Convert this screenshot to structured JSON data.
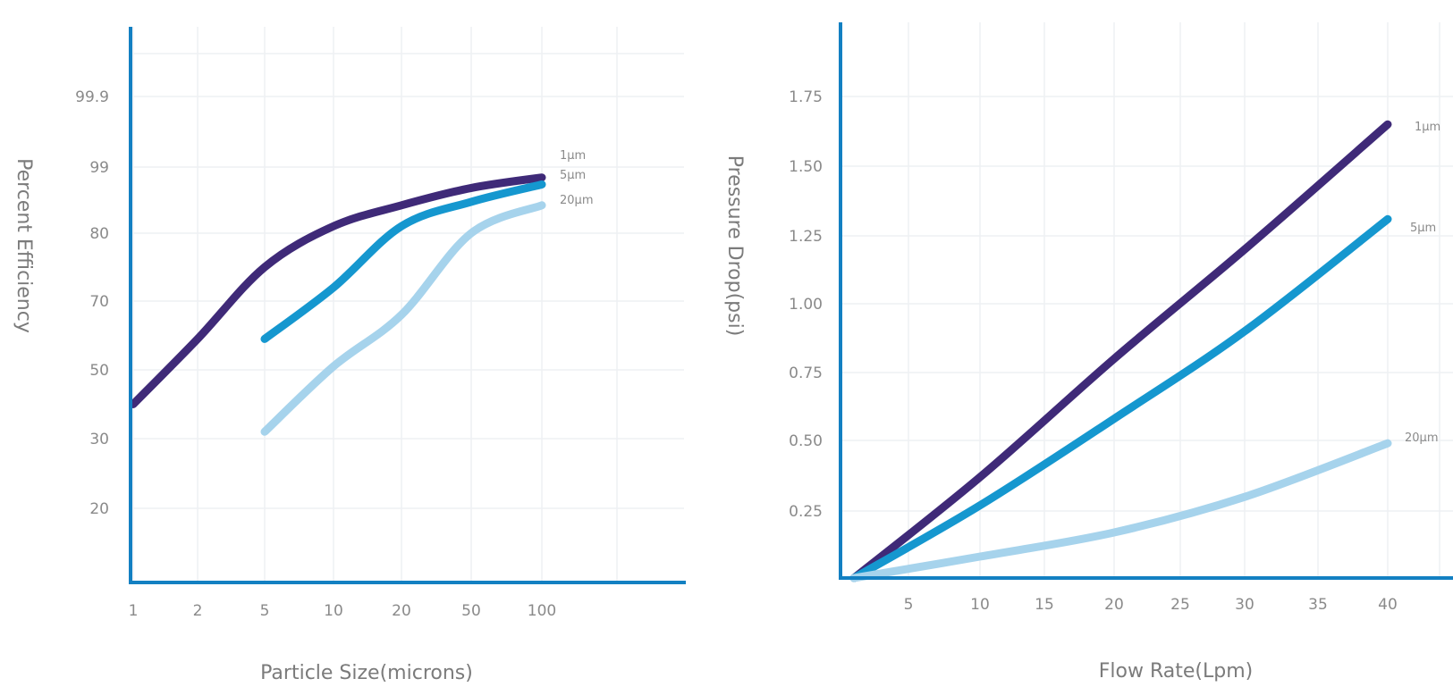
{
  "chart_data": [
    {
      "type": "line",
      "xlabel": "Particle Size(microns)",
      "ylabel": "Percent Efficiency",
      "x_categories": [
        "1",
        "2",
        "5",
        "10",
        "20",
        "50",
        "100"
      ],
      "y_categories": [
        "20",
        "30",
        "50",
        "70",
        "80",
        "99",
        "99.9"
      ],
      "series": [
        {
          "name": "1μm",
          "color": "#3f2a78",
          "points": [
            [
              1,
              40
            ],
            [
              2,
              59
            ],
            [
              5,
              75
            ],
            [
              10,
              82
            ],
            [
              20,
              88
            ],
            [
              50,
              93
            ],
            [
              100,
              96
            ]
          ]
        },
        {
          "name": "5μm",
          "color": "#1597cf",
          "points": [
            [
              5,
              59
            ],
            [
              10,
              72
            ],
            [
              20,
              82
            ],
            [
              50,
              89
            ],
            [
              100,
              94
            ]
          ]
        },
        {
          "name": "20μm",
          "color": "#a6d3ec",
          "points": [
            [
              5,
              32
            ],
            [
              10,
              51
            ],
            [
              20,
              66
            ],
            [
              50,
              80
            ],
            [
              100,
              88
            ]
          ]
        }
      ]
    },
    {
      "type": "line",
      "xlabel": "Flow Rate(Lpm)",
      "ylabel": "Pressure Drop(psi)",
      "x_ticks": [
        "5",
        "10",
        "15",
        "20",
        "25",
        "30",
        "35",
        "40"
      ],
      "y_ticks": [
        "0.25",
        "0.50",
        "0.75",
        "1.00",
        "1.25",
        "1.50",
        "1.75"
      ],
      "xlim": [
        0,
        45
      ],
      "ylim": [
        0,
        2.0
      ],
      "series": [
        {
          "name": "1μm",
          "color": "#3f2a78",
          "points": [
            [
              1,
              0.0
            ],
            [
              10,
              0.37
            ],
            [
              20,
              0.8
            ],
            [
              30,
              1.2
            ],
            [
              40,
              1.65
            ]
          ]
        },
        {
          "name": "5μm",
          "color": "#1597cf",
          "points": [
            [
              1,
              0.0
            ],
            [
              10,
              0.27
            ],
            [
              20,
              0.58
            ],
            [
              30,
              0.9
            ],
            [
              40,
              1.31
            ]
          ]
        },
        {
          "name": "20μm",
          "color": "#a6d3ec",
          "points": [
            [
              1,
              0.0
            ],
            [
              10,
              0.08
            ],
            [
              20,
              0.17
            ],
            [
              30,
              0.3
            ],
            [
              40,
              0.49
            ]
          ]
        }
      ]
    }
  ]
}
